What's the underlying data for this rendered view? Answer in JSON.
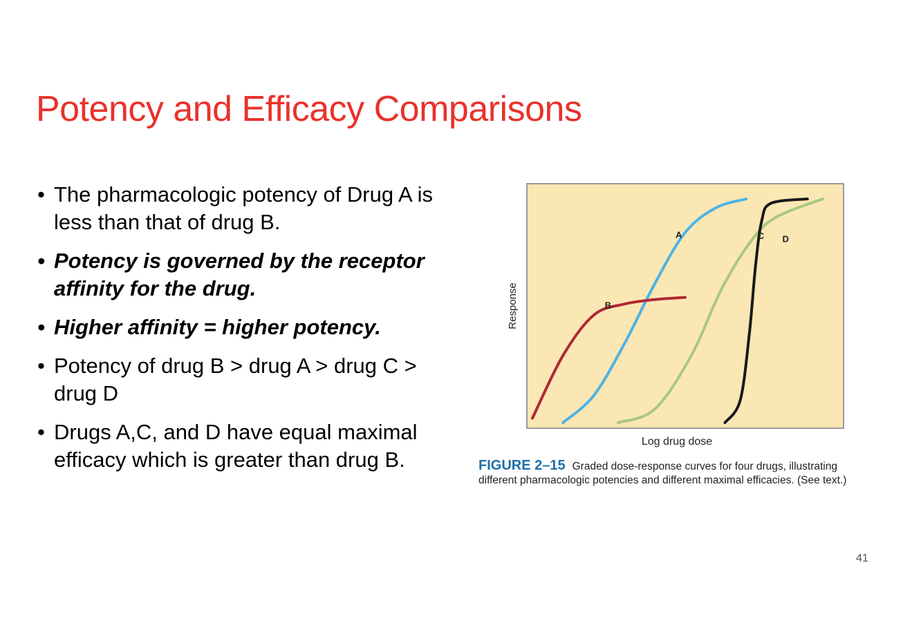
{
  "slide": {
    "title": "Potency and Efficacy Comparisons",
    "page_number": "41"
  },
  "bullets": [
    {
      "text": "The pharmacologic potency of Drug A is less than that of drug B.",
      "style": "normal"
    },
    {
      "text": "Potency is governed by the receptor affinity for the drug.",
      "style": "bold-italic"
    },
    {
      "text": "Higher affinity = higher potency.",
      "style": "bold-italic"
    },
    {
      "text": "Potency of drug B > drug A > drug C > drug D",
      "style": "normal"
    },
    {
      "text": "Drugs A,C, and D have equal maximal efficacy which is greater than drug B.",
      "style": "normal"
    }
  ],
  "figure": {
    "label": "FIGURE 2–15",
    "caption": "Graded dose-response curves for four drugs, illustrating different pharmacologic potencies and different maximal efficacies. (See text.)",
    "colors": {
      "background": "#fbe7b4",
      "frame": "#9a9a9a",
      "A": "#4fb3e3",
      "B": "#b02835",
      "C": "#a9c97f",
      "D": "#1a1a1a"
    }
  },
  "chart_data": {
    "type": "line",
    "xlabel": "Log drug dose",
    "ylabel": "Response",
    "xlim": [
      0,
      100
    ],
    "ylim": [
      0,
      100
    ],
    "grid": false,
    "series": [
      {
        "name": "A",
        "x": [
          10,
          20,
          30,
          40,
          50,
          60,
          70
        ],
        "y": [
          0,
          12,
          35,
          62,
          85,
          96,
          100
        ]
      },
      {
        "name": "B",
        "x": [
          0,
          10,
          20,
          30,
          40,
          50
        ],
        "y": [
          2,
          30,
          48,
          53,
          55,
          56
        ]
      },
      {
        "name": "C",
        "x": [
          28,
          40,
          52,
          62,
          72,
          80,
          95
        ],
        "y": [
          0,
          6,
          30,
          60,
          82,
          92,
          100
        ]
      },
      {
        "name": "D",
        "x": [
          63,
          68,
          71,
          73,
          75,
          78,
          90
        ],
        "y": [
          0,
          10,
          40,
          70,
          90,
          98,
          100
        ]
      }
    ]
  }
}
